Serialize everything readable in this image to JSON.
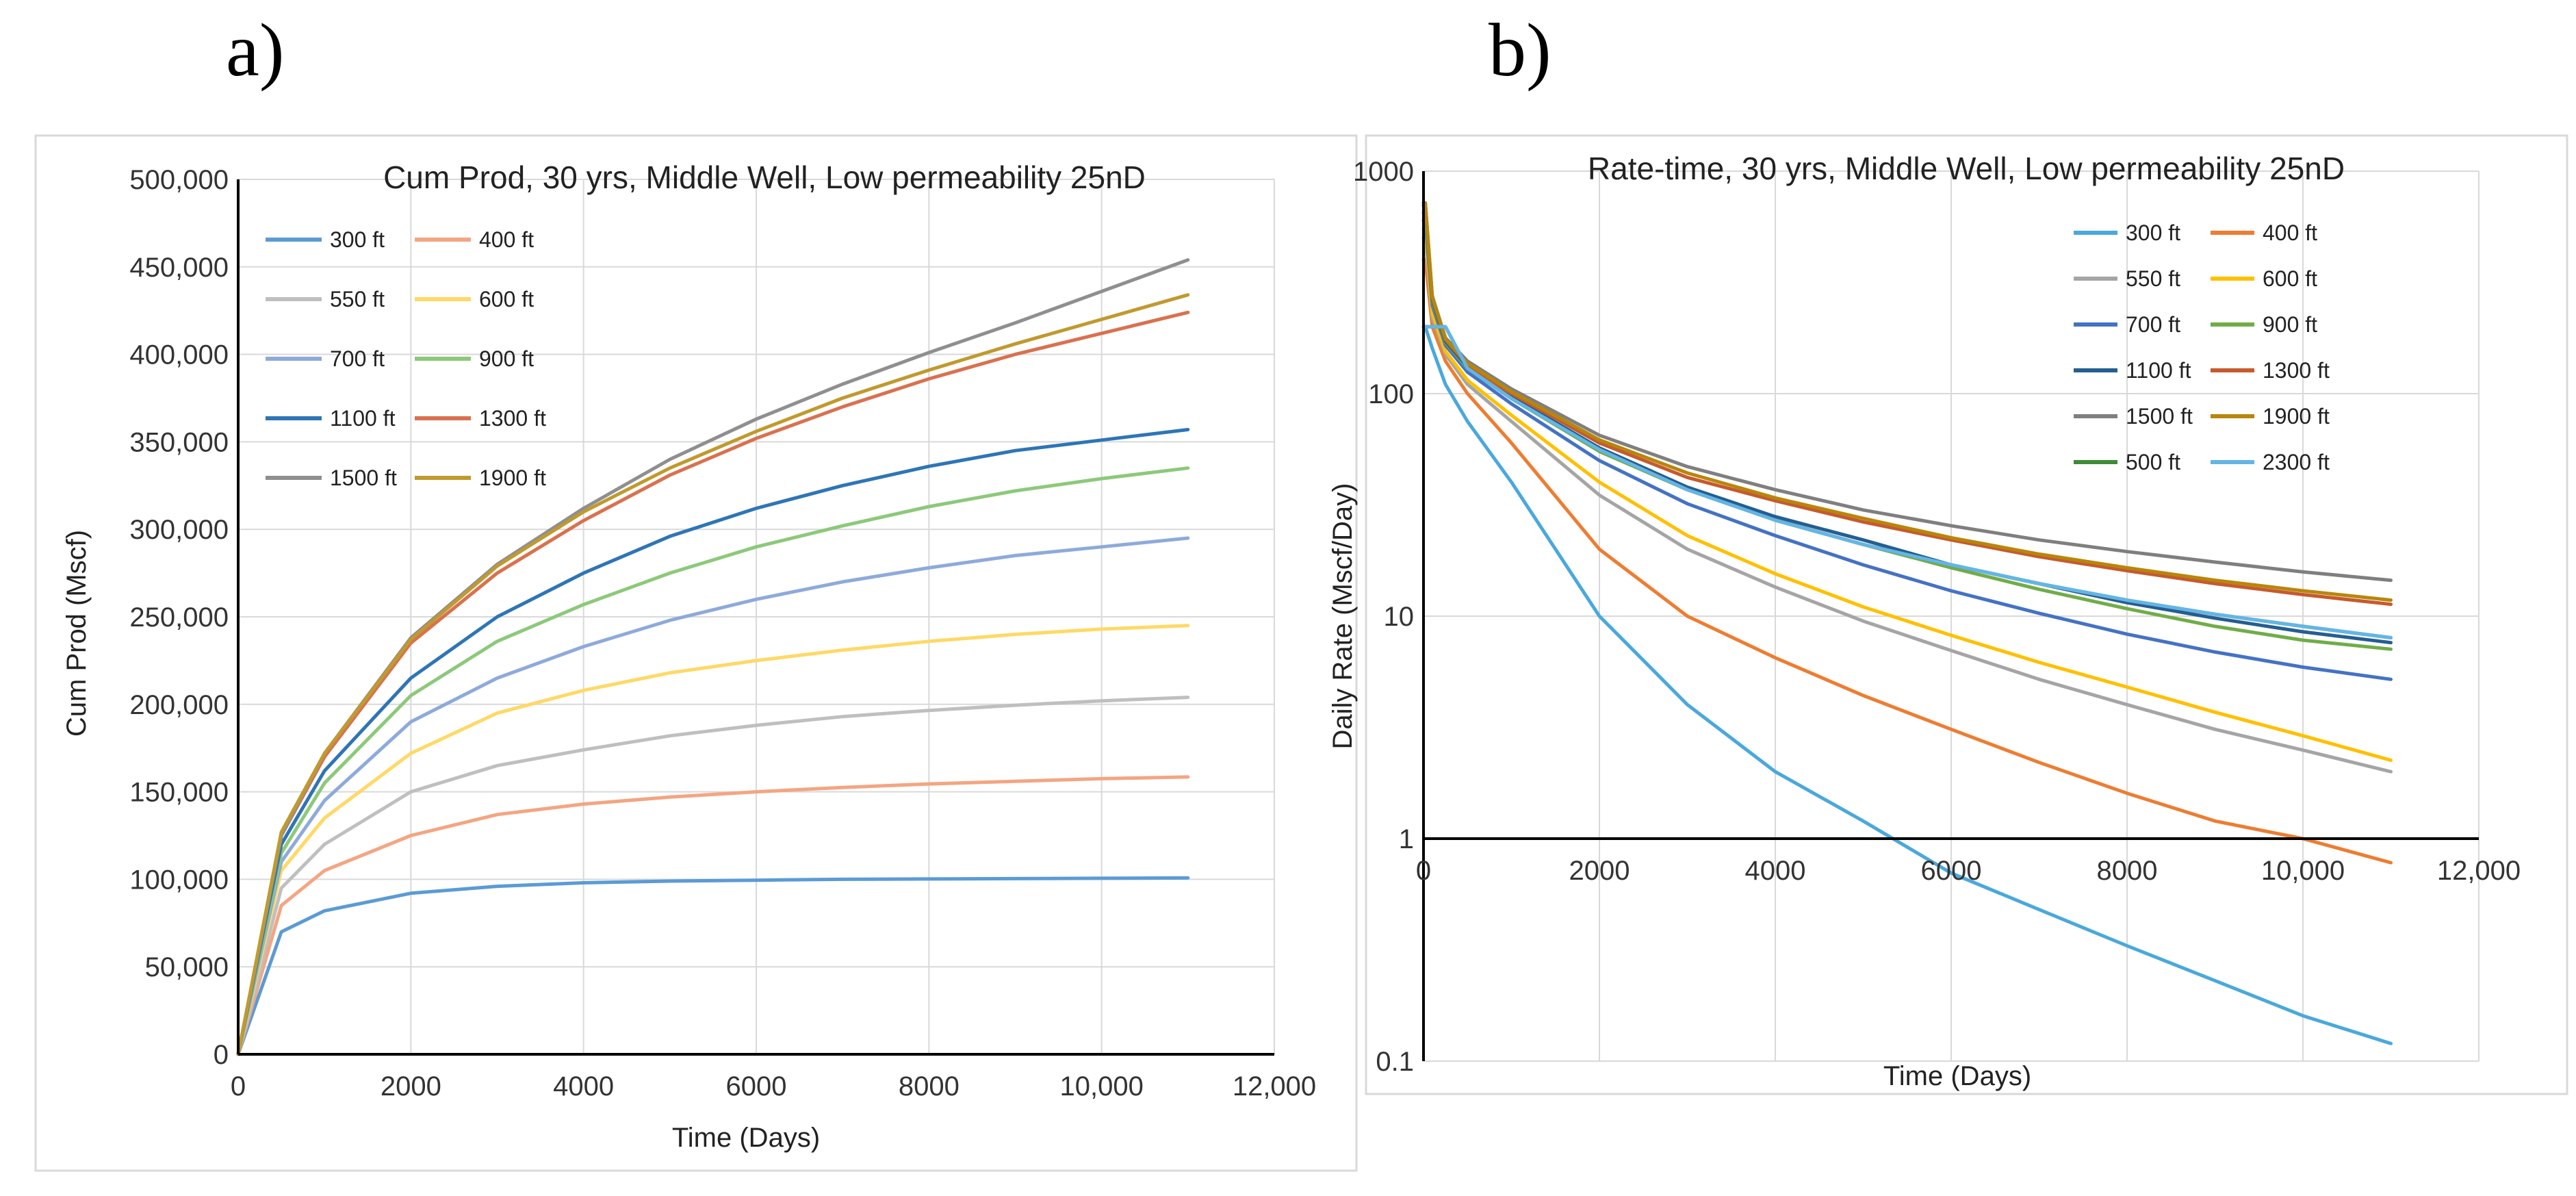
{
  "panel_labels": [
    "a)",
    "b)"
  ],
  "chart_data": [
    {
      "type": "line",
      "title": "Cum Prod, 30 yrs, Middle Well, Low permeability 25nD",
      "xlabel": "Time (Days)",
      "ylabel": "Cum Prod (Mscf)",
      "xlim": [
        0,
        12000
      ],
      "ylim": [
        0,
        500000
      ],
      "x_ticks": [
        0,
        2000,
        4000,
        6000,
        8000,
        10000,
        12000
      ],
      "x_tick_labels": [
        "0",
        "2000",
        "4000",
        "6000",
        "8000",
        "10,000",
        "12,000"
      ],
      "y_ticks": [
        0,
        50000,
        100000,
        150000,
        200000,
        250000,
        300000,
        350000,
        400000,
        450000,
        500000
      ],
      "y_tick_labels": [
        "0",
        "50,000",
        "100,000",
        "150,000",
        "200,000",
        "250,000",
        "300,000",
        "350,000",
        "400,000",
        "450,000",
        "500,000"
      ],
      "grid": true,
      "legend_placement": "top-left",
      "x": [
        0,
        500,
        1000,
        2000,
        3000,
        4000,
        5000,
        6000,
        7000,
        8000,
        9000,
        10000,
        11000
      ],
      "series": [
        {
          "name": "300 ft",
          "color": "#5b9bd5",
          "values": [
            0,
            70000,
            82000,
            92000,
            96000,
            98000,
            99000,
            99500,
            100000,
            100200,
            100400,
            100600,
            100800
          ]
        },
        {
          "name": "400 ft",
          "color": "#f4a582",
          "values": [
            0,
            85000,
            105000,
            125000,
            137000,
            143000,
            147000,
            150000,
            152500,
            154500,
            156000,
            157500,
            158500
          ]
        },
        {
          "name": "550 ft",
          "color": "#bfbfbf",
          "values": [
            0,
            95000,
            120000,
            150000,
            165000,
            174000,
            182000,
            188000,
            193000,
            196500,
            199500,
            202000,
            204000
          ]
        },
        {
          "name": "600 ft",
          "color": "#ffd966",
          "values": [
            0,
            105000,
            135000,
            172000,
            195000,
            208000,
            218000,
            225000,
            231000,
            236000,
            240000,
            243000,
            245000
          ]
        },
        {
          "name": "700 ft",
          "color": "#8eaadb",
          "values": [
            0,
            110000,
            145000,
            190000,
            215000,
            233000,
            248000,
            260000,
            270000,
            278000,
            285000,
            290000,
            295000
          ]
        },
        {
          "name": "900 ft",
          "color": "#8cc97a",
          "values": [
            0,
            115000,
            155000,
            205000,
            236000,
            257000,
            275000,
            290000,
            302000,
            313000,
            322000,
            329000,
            335000
          ]
        },
        {
          "name": "1100 ft",
          "color": "#2e75b6",
          "values": [
            0,
            120000,
            162000,
            215000,
            250000,
            275000,
            296000,
            312000,
            325000,
            336000,
            345000,
            351000,
            357000
          ]
        },
        {
          "name": "1300 ft",
          "color": "#d9714f",
          "values": [
            0,
            125000,
            170000,
            235000,
            275000,
            305000,
            331000,
            352000,
            370000,
            386000,
            400000,
            412000,
            424000
          ]
        },
        {
          "name": "1500 ft",
          "color": "#8f8f8f",
          "values": [
            0,
            125000,
            172000,
            238000,
            280000,
            312000,
            340000,
            363000,
            383000,
            401000,
            418000,
            436000,
            454000
          ]
        },
        {
          "name": "1900 ft",
          "color": "#c09a2e",
          "values": [
            0,
            127000,
            172000,
            237000,
            279000,
            310000,
            335000,
            356000,
            375000,
            391000,
            406000,
            420000,
            434000
          ]
        }
      ]
    },
    {
      "type": "line",
      "title": "Rate-time, 30 yrs, Middle Well, Low permeability 25nD",
      "xlabel": "Time (Days)",
      "ylabel": "Daily Rate (Mscf/Day)",
      "xlim": [
        0,
        12000
      ],
      "ylim": [
        0.1,
        1000
      ],
      "y_scale": "log",
      "x_ticks": [
        0,
        2000,
        4000,
        6000,
        8000,
        10000,
        12000
      ],
      "x_tick_labels": [
        "0",
        "2000",
        "4000",
        "6000",
        "8000",
        "10,000",
        "12,000"
      ],
      "y_ticks": [
        0.1,
        1,
        10,
        100,
        1000
      ],
      "y_tick_labels": [
        "0.1",
        "1",
        "10",
        "100",
        "1000"
      ],
      "grid": true,
      "legend_placement": "top-right",
      "x": [
        0,
        20,
        100,
        250,
        500,
        1000,
        2000,
        3000,
        4000,
        5000,
        6000,
        7000,
        8000,
        9000,
        10000,
        11000
      ],
      "series": [
        {
          "name": "300 ft",
          "color": "#4aa8dc",
          "values": [
            200,
            200,
            160,
            110,
            75,
            40,
            10,
            4,
            2,
            1.2,
            0.7,
            0.48,
            0.33,
            0.23,
            0.16,
            0.12
          ]
        },
        {
          "name": "400 ft",
          "color": "#ed7d31",
          "values": [
            400,
            400,
            200,
            140,
            100,
            60,
            20,
            10,
            6.5,
            4.4,
            3.1,
            2.2,
            1.6,
            1.2,
            1.0,
            0.78
          ]
        },
        {
          "name": "550 ft",
          "color": "#a5a5a5",
          "values": [
            500,
            500,
            220,
            150,
            110,
            75,
            35,
            20,
            13.5,
            9.5,
            7,
            5.2,
            4,
            3.1,
            2.5,
            2.0
          ]
        },
        {
          "name": "600 ft",
          "color": "#ffc000",
          "values": [
            550,
            550,
            230,
            155,
            115,
            80,
            40,
            23,
            15.5,
            11,
            8.2,
            6.2,
            4.8,
            3.7,
            2.9,
            2.25
          ]
        },
        {
          "name": "700 ft",
          "color": "#4472c4",
          "values": [
            600,
            600,
            250,
            165,
            125,
            90,
            50,
            32,
            23,
            17,
            13,
            10.3,
            8.3,
            6.9,
            5.9,
            5.2
          ]
        },
        {
          "name": "900 ft",
          "color": "#70ad47",
          "values": [
            650,
            650,
            260,
            170,
            130,
            95,
            55,
            37,
            27,
            21,
            16.5,
            13.2,
            10.8,
            9,
            7.8,
            7.1
          ]
        },
        {
          "name": "1100 ft",
          "color": "#255e91",
          "values": [
            700,
            700,
            265,
            172,
            132,
            97,
            57,
            38,
            28,
            22,
            17,
            14,
            11.5,
            9.8,
            8.5,
            7.6
          ]
        },
        {
          "name": "1300 ft",
          "color": "#c65a2e",
          "values": [
            720,
            720,
            270,
            175,
            134,
            100,
            60,
            42,
            33,
            26.5,
            22,
            18.5,
            16,
            14,
            12.5,
            11.3
          ]
        },
        {
          "name": "1500 ft",
          "color": "#7f7f7f",
          "values": [
            720,
            720,
            275,
            178,
            140,
            105,
            65,
            47,
            37,
            30,
            25.5,
            22,
            19.5,
            17.5,
            15.8,
            14.5
          ]
        },
        {
          "name": "1900 ft",
          "color": "#b8860b",
          "values": [
            720,
            720,
            272,
            176,
            137,
            102,
            62,
            44,
            34,
            27.5,
            22.5,
            19,
            16.5,
            14.5,
            13,
            11.8
          ]
        },
        {
          "name": "500 ft",
          "color": "#3d8b37",
          "values": [
            200,
            200,
            200,
            200,
            130,
            95,
            56,
            37,
            27,
            21,
            17,
            14,
            11.8,
            10.2,
            9,
            8
          ]
        },
        {
          "name": "2300 ft",
          "color": "#64b5e6",
          "values": [
            200,
            200,
            200,
            200,
            130,
            95,
            56,
            37,
            27,
            21,
            17,
            14,
            11.8,
            10.2,
            9,
            8
          ]
        }
      ]
    }
  ]
}
